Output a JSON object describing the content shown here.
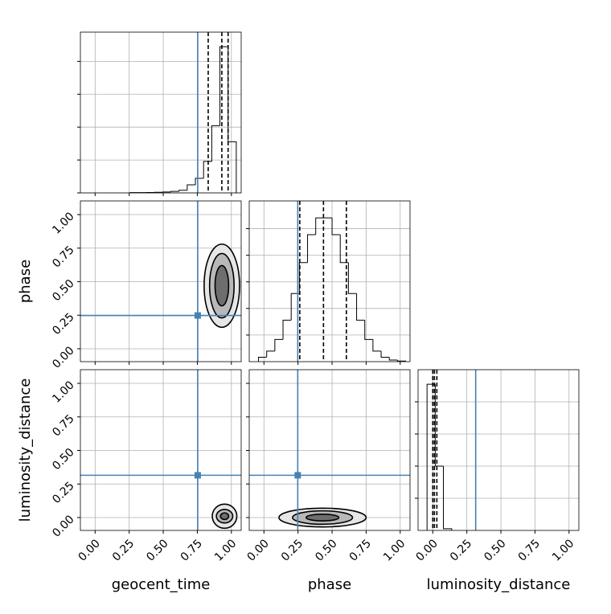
{
  "chart_data": {
    "type": "corner",
    "parameters": [
      {
        "name": "geocent_time",
        "truth": 0.753,
        "quantiles": [
          0.83,
          0.93,
          0.976
        ]
      },
      {
        "name": "phase",
        "truth": 0.248,
        "quantiles": [
          0.263,
          0.437,
          0.605
        ]
      },
      {
        "name": "luminosity_distance",
        "truth": 0.315,
        "quantiles": [
          0.0,
          0.012,
          0.03
        ]
      }
    ],
    "xlim": [
      -0.108,
      1.072
    ],
    "ylim": [
      -0.096,
      1.102
    ],
    "ticks": [
      {
        "value": 0,
        "label": "0.00"
      },
      {
        "value": 0.25,
        "label": "0.25"
      },
      {
        "value": 0.5,
        "label": "0.50"
      },
      {
        "value": 0.75,
        "label": "0.75"
      },
      {
        "value": 1,
        "label": "1.00"
      }
    ],
    "truth_color": "#4682b4",
    "grid": true,
    "histograms": [
      {
        "bins": [
          0.256,
          0.316,
          0.376,
          0.436,
          0.496,
          0.556,
          0.616,
          0.676,
          0.736,
          0.796,
          0.856,
          0.916,
          0.976,
          1.036
        ],
        "counts": [
          2,
          2,
          3,
          4,
          6,
          10,
          18,
          55,
          100,
          215,
          460,
          1000,
          350
        ],
        "ylim": [
          0,
          1100
        ],
        "yticks": [
          0,
          225,
          450,
          675,
          900
        ]
      },
      {
        "bins": [
          -0.04,
          0.02,
          0.08,
          0.14,
          0.2,
          0.26,
          0.32,
          0.38,
          0.44,
          0.5,
          0.56,
          0.62,
          0.68,
          0.74,
          0.8,
          0.86,
          0.92,
          0.98,
          1.04
        ],
        "counts": [
          30,
          72,
          152,
          284,
          466,
          678,
          869,
          984,
          984,
          869,
          678,
          466,
          284,
          152,
          72,
          30,
          11,
          4
        ],
        "ylim": [
          0,
          1100
        ],
        "yticks": [
          182,
          364,
          546,
          728,
          910
        ]
      },
      {
        "bins": [
          -0.042,
          0.018,
          0.078,
          0.139
        ],
        "counts": [
          1000,
          440,
          12
        ],
        "ylim": [
          0,
          1100
        ],
        "yticks": [
          220,
          440,
          660,
          880
        ]
      }
    ],
    "contours": [
      {
        "center": [
          0.93,
          0.47
        ],
        "levels": [
          [
            0.13,
            0.31
          ],
          [
            0.09,
            0.24
          ],
          [
            0.05,
            0.15
          ]
        ]
      },
      {
        "center": [
          0.95,
          0.01
        ],
        "levels": [
          [
            0.09,
            0.09
          ],
          [
            0.06,
            0.05
          ],
          [
            0.03,
            0.025
          ]
        ]
      },
      {
        "center": [
          0.43,
          0.0
        ],
        "levels": [
          [
            0.32,
            0.07
          ],
          [
            0.22,
            0.05
          ],
          [
            0.12,
            0.025
          ]
        ]
      }
    ]
  }
}
